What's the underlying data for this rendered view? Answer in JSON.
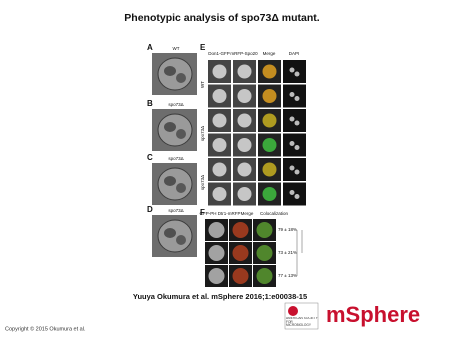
{
  "header": {
    "title": "Phenotypic analysis of spo73Δ mutant."
  },
  "figure": {
    "left_panels": [
      {
        "letter": "A",
        "label": "WT"
      },
      {
        "letter": "B",
        "label": "spo73Δ"
      },
      {
        "letter": "C",
        "label": "spo73Δ"
      },
      {
        "letter": "D",
        "label": "spo73Δ"
      }
    ],
    "panel_e": {
      "letter": "E",
      "columns": [
        "Don1-GFP",
        "mRFP-Spo20",
        "Merge",
        "DAPI"
      ],
      "groups": [
        "WT",
        "spo73Δ",
        "spo73Δ"
      ]
    },
    "panel_f": {
      "letter": "F",
      "columns": [
        "GFP-PH Dtr1-mRFP",
        "Merge",
        "Colocalization"
      ],
      "percentages": [
        "79 ± 18%",
        "73 ± 21%",
        "77 ± 13%"
      ]
    }
  },
  "footer": {
    "citation": "Yuuya Okumura et al. mSphere 2016;1:e00038-15",
    "copyright": "Copyright © 2015 Okumura et al.",
    "publisher": "AMERICAN SOCIETY FOR MICROBIOLOGY",
    "journal": "mSphere"
  }
}
